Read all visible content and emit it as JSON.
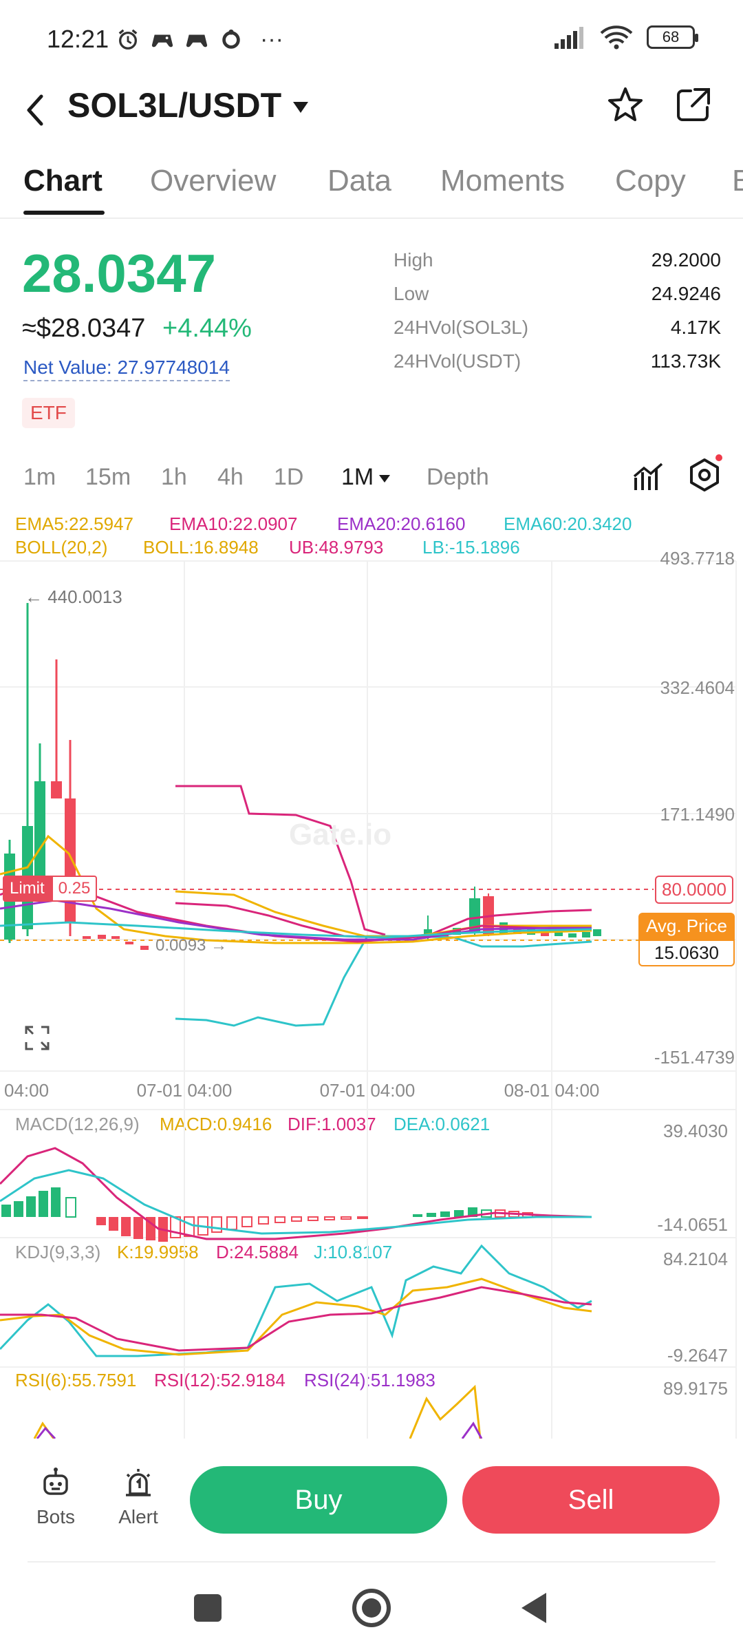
{
  "status_bar": {
    "time": "12:21",
    "battery": "68",
    "more": "···"
  },
  "header": {
    "title": "SOL3L/USDT"
  },
  "tabs": [
    "Chart",
    "Overview",
    "Data",
    "Moments",
    "Copy",
    "B"
  ],
  "price": {
    "last": "28.0347",
    "fiat": "≈$28.0347",
    "change": "+4.44%",
    "net_value": "Net Value: 27.97748014",
    "badge": "ETF"
  },
  "stats": [
    {
      "label": "High",
      "value": "29.2000"
    },
    {
      "label": "Low",
      "value": "24.9246"
    },
    {
      "label": "24HVol(SOL3L)",
      "value": "4.17K"
    },
    {
      "label": "24HVol(USDT)",
      "value": "113.73K"
    }
  ],
  "intervals": [
    "1m",
    "15m",
    "1h",
    "4h",
    "1D",
    "1M",
    "Depth"
  ],
  "legends": {
    "ema5": "EMA5:22.5947",
    "ema10": "EMA10:22.0907",
    "ema20": "EMA20:20.6160",
    "ema60": "EMA60:20.3420",
    "boll": "BOLL(20,2)",
    "boll_mid": "BOLL:16.8948",
    "ub": "UB:48.9793",
    "lb": "LB:-15.1896",
    "macd_title": "MACD(12,26,9)",
    "macd": "MACD:0.9416",
    "dif": "DIF:1.0037",
    "dea": "DEA:0.0621",
    "kdj_title": "KDJ(9,3,3)",
    "k": "K:19.9958",
    "d": "D:24.5884",
    "j": "J:10.8107",
    "rsi6": "RSI(6):55.7591",
    "rsi12": "RSI(12):52.9184",
    "rsi24": "RSI(24):51.1983"
  },
  "chart": {
    "y_labels": [
      "493.7718",
      "332.4604",
      "171.1490",
      "-151.4739"
    ],
    "x_labels": [
      "04:00",
      "07-01 04:00",
      "07-01 04:00",
      "08-01 04:00"
    ],
    "macd_labels": [
      "39.4030",
      "-14.0651"
    ],
    "kdj_labels": [
      "84.2104",
      "-9.2647"
    ],
    "rsi_labels": [
      "89.9175"
    ],
    "peak_label": "← 440.0013",
    "low_label": "0.0093 →",
    "limit_label": "Limit",
    "limit_value": "0.25",
    "limit_price": "80.0000",
    "avg_label": "Avg. Price",
    "avg_value": "15.0630",
    "watermark": "Gate.io"
  },
  "actions": {
    "bots": "Bots",
    "alert": "Alert",
    "buy": "Buy",
    "sell": "Sell"
  },
  "colors": {
    "up": "#23b877",
    "down": "#ef4a5a",
    "ema5": "#f0b400",
    "ema10": "#d9257a",
    "ema20": "#9b30c8",
    "ema60": "#2ec4c9"
  }
}
